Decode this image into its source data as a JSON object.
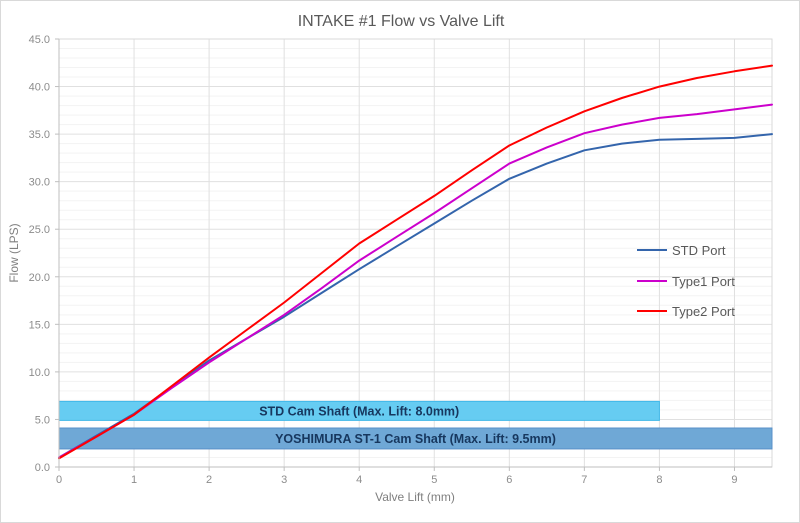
{
  "chart_data": {
    "type": "line",
    "title": "INTAKE #1 Flow vs Valve Lift",
    "xlabel": "Valve Lift (mm)",
    "ylabel": "Flow (LPS)",
    "xlim": [
      0,
      9.5
    ],
    "ylim": [
      0,
      45
    ],
    "grid": true,
    "legend_position": "right-middle",
    "x_ticks": [
      {
        "value": 0,
        "label": "0"
      },
      {
        "value": 1,
        "label": "1"
      },
      {
        "value": 2,
        "label": "2"
      },
      {
        "value": 3,
        "label": "3"
      },
      {
        "value": 4,
        "label": "4"
      },
      {
        "value": 5,
        "label": "5"
      },
      {
        "value": 6,
        "label": "6"
      },
      {
        "value": 7,
        "label": "7"
      },
      {
        "value": 8,
        "label": "8"
      },
      {
        "value": 9,
        "label": "9"
      }
    ],
    "y_ticks": [
      {
        "value": 0,
        "label": "0.0"
      },
      {
        "value": 5,
        "label": "5.0"
      },
      {
        "value": 10,
        "label": "10.0"
      },
      {
        "value": 15,
        "label": "15.0"
      },
      {
        "value": 20,
        "label": "20.0"
      },
      {
        "value": 25,
        "label": "25.0"
      },
      {
        "value": 30,
        "label": "30.0"
      },
      {
        "value": 35,
        "label": "35.0"
      },
      {
        "value": 40,
        "label": "40.0"
      },
      {
        "value": 45,
        "label": "45.0"
      }
    ],
    "x": [
      0,
      0.5,
      1,
      1.5,
      2,
      2.5,
      3,
      3.5,
      4,
      4.5,
      5,
      5.5,
      6,
      6.5,
      7,
      7.5,
      8,
      8.5,
      9,
      9.5
    ],
    "series": [
      {
        "name": "STD Port",
        "color": "#3465ac",
        "values": [
          1.0,
          3.3,
          5.6,
          8.4,
          11.2,
          13.5,
          15.8,
          18.3,
          20.8,
          23.2,
          25.6,
          28.0,
          30.3,
          31.9,
          33.3,
          34.0,
          34.4,
          34.5,
          34.6,
          35.0
        ]
      },
      {
        "name": "Type1 Port",
        "color": "#cc00cc",
        "values": [
          1.0,
          3.2,
          5.5,
          8.3,
          11.0,
          13.5,
          16.0,
          18.8,
          21.7,
          24.2,
          26.7,
          29.3,
          31.9,
          33.6,
          35.1,
          36.0,
          36.7,
          37.1,
          37.6,
          38.1
        ]
      },
      {
        "name": "Type2 Port",
        "color": "#ff0000",
        "values": [
          0.9,
          3.2,
          5.5,
          8.5,
          11.5,
          14.4,
          17.3,
          20.4,
          23.5,
          26.0,
          28.5,
          31.2,
          33.8,
          35.7,
          37.4,
          38.8,
          40.0,
          40.9,
          41.6,
          42.2
        ]
      }
    ],
    "annotations": [
      {
        "label": "STD Cam Shaft (Max. Lift: 8.0mm)",
        "x_start": 0,
        "x_end": 8.0,
        "y_bottom": 4.9,
        "y_top": 6.9,
        "fill": "#66ccf2",
        "stroke": "#41b8e8",
        "text_color": "#17375e"
      },
      {
        "label": "YOSHIMURA ST-1 Cam Shaft (Max. Lift: 9.5mm)",
        "x_start": 0,
        "x_end": 9.5,
        "y_bottom": 1.9,
        "y_top": 4.1,
        "fill": "#6fa8d6",
        "stroke": "#5890c8",
        "text_color": "#17375e"
      }
    ],
    "style": {
      "minor_grid_color": "#f3f3f3",
      "major_grid_color": "#e0e0e0",
      "axis_color": "#bfbfbf",
      "border_color": "#d9d9d9"
    }
  }
}
